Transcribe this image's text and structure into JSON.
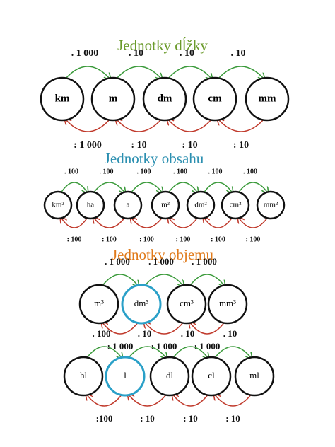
{
  "sections": [
    {
      "title": "Jednotky dĺžky",
      "rows": [
        {
          "nodes": [
            "km",
            "m",
            "dm",
            "cm",
            "mm"
          ],
          "forward": [
            ". 1 000",
            ". 10",
            ". 10",
            ". 10"
          ],
          "backward": [
            ": 1 000",
            ": 10",
            ": 10",
            ": 10"
          ]
        }
      ]
    },
    {
      "title": "Jednotky obsahu",
      "rows": [
        {
          "nodes": [
            "km²",
            "ha",
            "a",
            "m²",
            "dm²",
            "cm²",
            "mm²"
          ],
          "forward": [
            ". 100",
            ". 100",
            ". 100",
            ". 100",
            ". 100",
            ". 100"
          ],
          "backward": [
            ": 100",
            ": 100",
            ": 100",
            ": 100",
            ": 100",
            ": 100"
          ]
        }
      ]
    },
    {
      "title": "Jednotky objemu",
      "rows": [
        {
          "nodes": [
            "m³",
            "dm³",
            "cm³",
            "mm³"
          ],
          "forward": [
            ". 1 000",
            ". 1 000",
            ". 1 000"
          ],
          "backward": [
            ": 1 000",
            ": 1 000",
            ": 1 000"
          ]
        },
        {
          "nodes": [
            "hl",
            "l",
            "dl",
            "cl",
            "ml"
          ],
          "forward": [
            ". 100",
            ". 10",
            ". 10",
            ". 10"
          ],
          "backward": [
            ":100",
            ": 10",
            ": 10",
            ": 10"
          ]
        }
      ]
    }
  ]
}
